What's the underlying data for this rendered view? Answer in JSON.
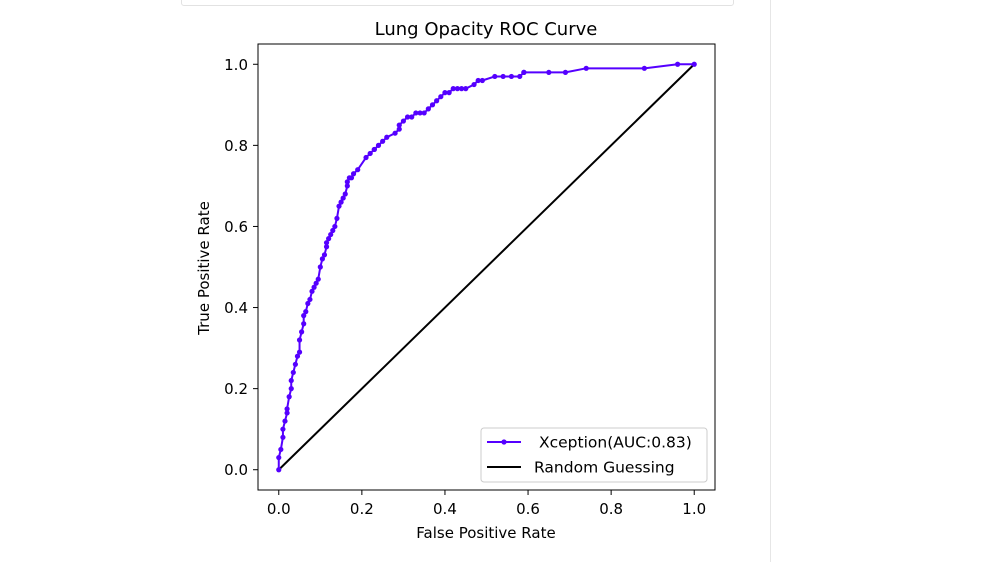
{
  "chart_data": {
    "type": "line",
    "title": "Lung Opacity ROC Curve",
    "xlabel": "False Positive Rate",
    "ylabel": "True Positive Rate",
    "xlim": [
      -0.05,
      1.05
    ],
    "ylim": [
      -0.05,
      1.05
    ],
    "xticks": [
      0.0,
      0.2,
      0.4,
      0.6,
      0.8,
      1.0
    ],
    "yticks": [
      0.0,
      0.2,
      0.4,
      0.6,
      0.8,
      1.0
    ],
    "xtick_labels": [
      "0.0",
      "0.2",
      "0.4",
      "0.6",
      "0.8",
      "1.0"
    ],
    "ytick_labels": [
      "0.0",
      "0.2",
      "0.4",
      "0.6",
      "0.8",
      "1.0"
    ],
    "grid": false,
    "legend_position": "bottom-right",
    "series": [
      {
        "name": "Xception(AUC:0.83)",
        "color": "#5500ff",
        "marker": "circle",
        "x": [
          0.0,
          0.0,
          0.005,
          0.01,
          0.01,
          0.015,
          0.02,
          0.02,
          0.025,
          0.03,
          0.03,
          0.035,
          0.04,
          0.045,
          0.05,
          0.05,
          0.055,
          0.06,
          0.06,
          0.065,
          0.07,
          0.075,
          0.08,
          0.085,
          0.09,
          0.095,
          0.1,
          0.105,
          0.11,
          0.115,
          0.115,
          0.12,
          0.125,
          0.13,
          0.135,
          0.14,
          0.145,
          0.15,
          0.155,
          0.16,
          0.165,
          0.165,
          0.17,
          0.175,
          0.18,
          0.19,
          0.21,
          0.22,
          0.23,
          0.23,
          0.24,
          0.25,
          0.26,
          0.28,
          0.29,
          0.29,
          0.3,
          0.31,
          0.32,
          0.33,
          0.34,
          0.35,
          0.36,
          0.37,
          0.38,
          0.39,
          0.4,
          0.41,
          0.42,
          0.43,
          0.44,
          0.45,
          0.47,
          0.48,
          0.49,
          0.52,
          0.54,
          0.56,
          0.58,
          0.59,
          0.59,
          0.65,
          0.69,
          0.74,
          0.88,
          0.96,
          1.0
        ],
        "y": [
          0.0,
          0.03,
          0.05,
          0.08,
          0.1,
          0.12,
          0.14,
          0.15,
          0.18,
          0.2,
          0.22,
          0.24,
          0.26,
          0.28,
          0.29,
          0.32,
          0.34,
          0.36,
          0.38,
          0.39,
          0.41,
          0.42,
          0.44,
          0.45,
          0.46,
          0.47,
          0.5,
          0.52,
          0.53,
          0.55,
          0.56,
          0.57,
          0.58,
          0.59,
          0.6,
          0.62,
          0.65,
          0.66,
          0.67,
          0.68,
          0.7,
          0.71,
          0.72,
          0.72,
          0.73,
          0.74,
          0.77,
          0.78,
          0.79,
          0.79,
          0.8,
          0.81,
          0.82,
          0.83,
          0.84,
          0.85,
          0.86,
          0.87,
          0.87,
          0.88,
          0.88,
          0.88,
          0.89,
          0.9,
          0.91,
          0.92,
          0.93,
          0.93,
          0.94,
          0.94,
          0.94,
          0.94,
          0.95,
          0.96,
          0.96,
          0.97,
          0.97,
          0.97,
          0.97,
          0.98,
          0.98,
          0.98,
          0.98,
          0.99,
          0.99,
          1.0,
          1.0
        ]
      },
      {
        "name": "Random Guessing",
        "color": "#000000",
        "marker": "none",
        "x": [
          0.0,
          1.0
        ],
        "y": [
          0.0,
          1.0
        ]
      }
    ]
  }
}
